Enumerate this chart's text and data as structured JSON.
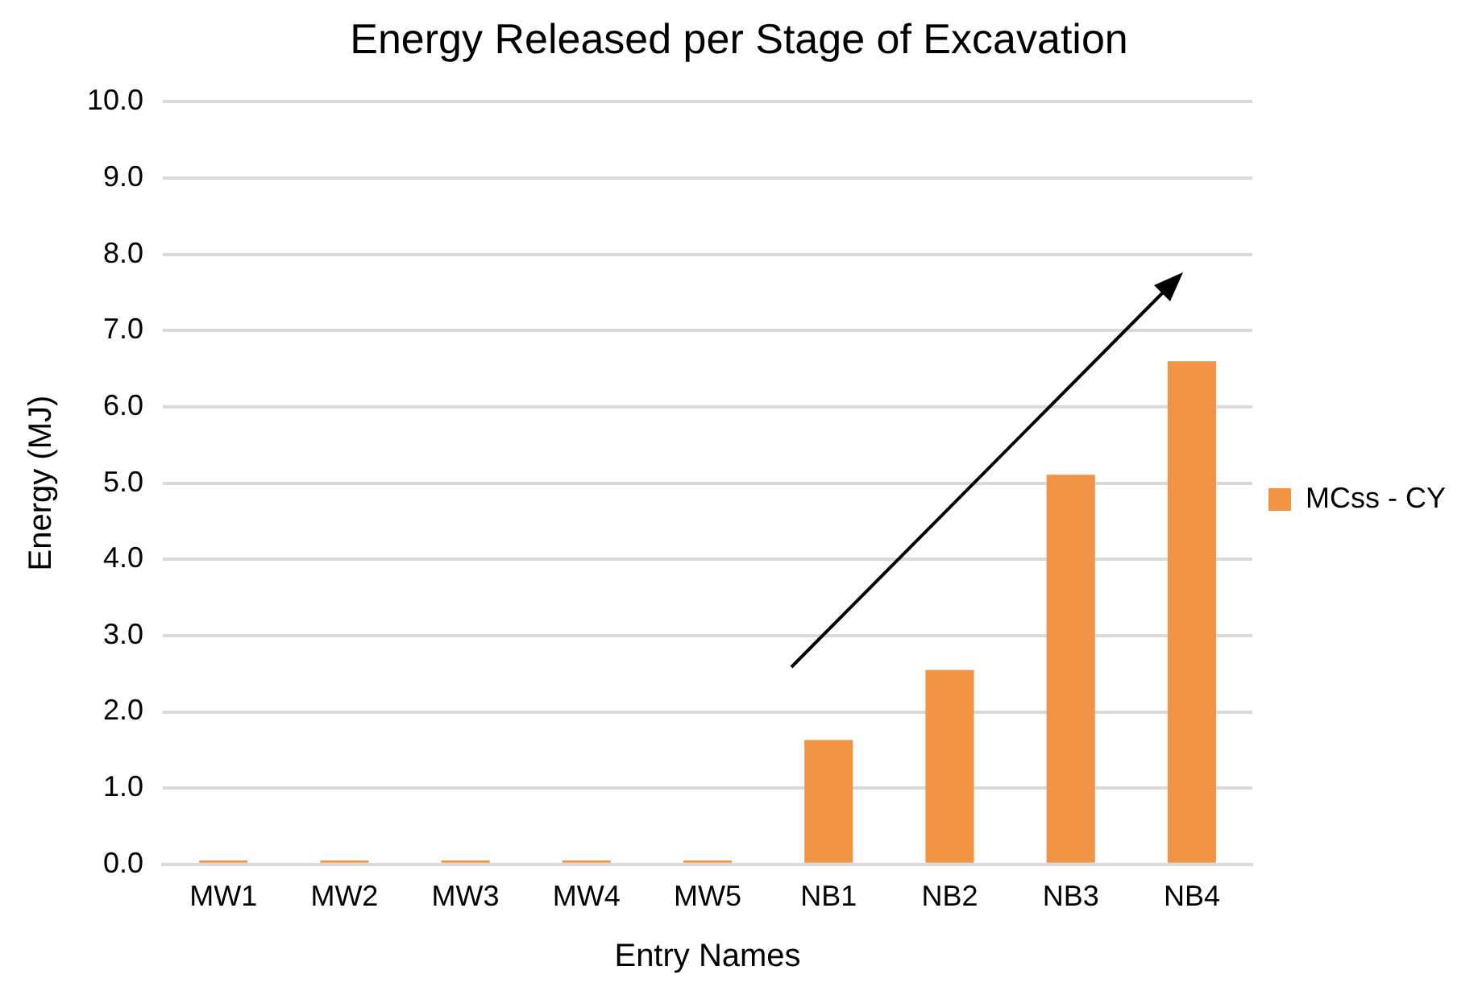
{
  "chart_data": {
    "type": "bar",
    "title": "Energy Released per Stage of Excavation",
    "xlabel": "Entry Names",
    "ylabel": "Energy (MJ)",
    "categories": [
      "MW1",
      "MW2",
      "MW3",
      "MW4",
      "MW5",
      "NB1",
      "NB2",
      "NB3",
      "NB4"
    ],
    "series": [
      {
        "name": "MCss - CY",
        "color": "#f19443",
        "values": [
          0.05,
          0.05,
          0.05,
          0.05,
          0.05,
          1.63,
          2.55,
          5.11,
          6.6
        ]
      }
    ],
    "ylim": [
      0,
      10
    ],
    "yticks": [
      {
        "value": 0,
        "label": "0.0"
      },
      {
        "value": 1,
        "label": "1.0"
      },
      {
        "value": 2,
        "label": "2.0"
      },
      {
        "value": 3,
        "label": "3.0"
      },
      {
        "value": 4,
        "label": "4.0"
      },
      {
        "value": 5,
        "label": "5.0"
      },
      {
        "value": 6,
        "label": "6.0"
      },
      {
        "value": 7,
        "label": "7.0"
      },
      {
        "value": 8,
        "label": "8.0"
      },
      {
        "value": 9,
        "label": "9.0"
      },
      {
        "value": 10,
        "label": "10.0"
      }
    ],
    "grid": "y",
    "legend": "right"
  }
}
